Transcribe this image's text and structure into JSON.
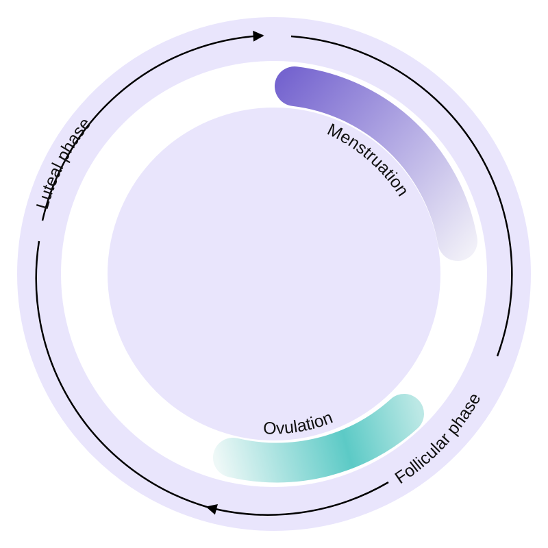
{
  "diagram": {
    "menstruation_label": "Menstruation",
    "ovulation_label": "Ovulation",
    "follicular_label": "Follicular phase",
    "luteal_label": "Luteal phase"
  },
  "colors": {
    "outer_ring": "#E9E5FC",
    "inner_disc": "#E9E5FC",
    "menstruation_start": "#7564CF",
    "menstruation_end": "#F1F0F8",
    "ovulation_peak": "#5CCAC6",
    "ovulation_fade": "#EEF8F7",
    "arrow": "#000000"
  }
}
